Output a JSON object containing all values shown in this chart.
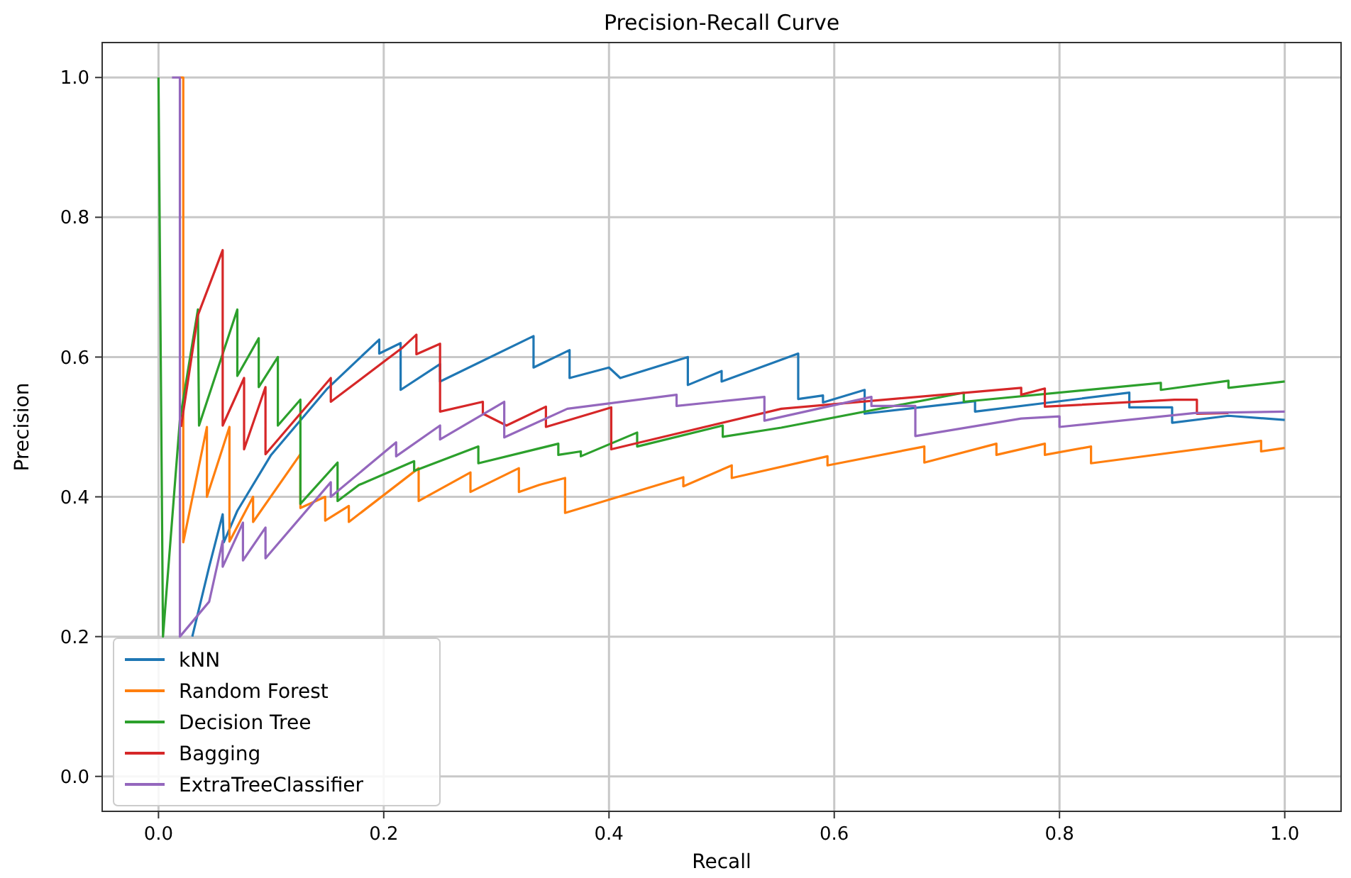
{
  "chart_data": {
    "type": "line",
    "title": "Precision-Recall Curve",
    "xlabel": "Recall",
    "ylabel": "Precision",
    "xlim": [
      -0.05,
      1.05
    ],
    "ylim": [
      -0.05,
      1.05
    ],
    "xticks": [
      {
        "value": 0,
        "label": "0.0"
      },
      {
        "value": 0.2,
        "label": "0.2"
      },
      {
        "value": 0.4,
        "label": "0.4"
      },
      {
        "value": 0.6,
        "label": "0.6"
      },
      {
        "value": 0.8,
        "label": "0.8"
      },
      {
        "value": 1,
        "label": "1.0"
      }
    ],
    "yticks": [
      {
        "value": 0,
        "label": "0.0"
      },
      {
        "value": 0.2,
        "label": "0.2"
      },
      {
        "value": 0.4,
        "label": "0.4"
      },
      {
        "value": 0.6,
        "label": "0.6"
      },
      {
        "value": 0.8,
        "label": "0.8"
      },
      {
        "value": 1,
        "label": "1.0"
      }
    ],
    "grid": true,
    "legend": "bottom left",
    "marker": "none",
    "line_style": "solid",
    "series": [
      {
        "name": "kNN",
        "color": "#1f77b4",
        "x": [
          0.03,
          0.045,
          0.057,
          0.058,
          0.07,
          0.1,
          0.15,
          0.196,
          0.196,
          0.215,
          0.215,
          0.25,
          0.25,
          0.333,
          0.333,
          0.365,
          0.365,
          0.4,
          0.41,
          0.47,
          0.47,
          0.5,
          0.5,
          0.568,
          0.568,
          0.59,
          0.59,
          0.627,
          0.627,
          0.725,
          0.725,
          0.862,
          0.862,
          0.9,
          0.9,
          0.95,
          1.0
        ],
        "values": [
          0.2,
          0.3,
          0.375,
          0.335,
          0.38,
          0.46,
          0.555,
          0.625,
          0.605,
          0.62,
          0.553,
          0.59,
          0.565,
          0.63,
          0.585,
          0.61,
          0.57,
          0.585,
          0.57,
          0.6,
          0.56,
          0.58,
          0.565,
          0.605,
          0.54,
          0.545,
          0.535,
          0.553,
          0.519,
          0.537,
          0.522,
          0.549,
          0.528,
          0.528,
          0.506,
          0.516,
          0.51
        ]
      },
      {
        "name": "Random Forest",
        "color": "#ff7f0e",
        "x": [
          0.019,
          0.022,
          0.022,
          0.043,
          0.043,
          0.063,
          0.063,
          0.084,
          0.084,
          0.126,
          0.126,
          0.148,
          0.148,
          0.169,
          0.169,
          0.231,
          0.231,
          0.277,
          0.277,
          0.32,
          0.32,
          0.338,
          0.361,
          0.361,
          0.466,
          0.466,
          0.509,
          0.509,
          0.594,
          0.594,
          0.68,
          0.68,
          0.744,
          0.744,
          0.787,
          0.787,
          0.828,
          0.828,
          0.979,
          0.979,
          1.0
        ],
        "values": [
          1,
          1,
          0.335,
          0.5,
          0.4,
          0.5,
          0.336,
          0.4,
          0.364,
          0.461,
          0.384,
          0.4,
          0.366,
          0.387,
          0.364,
          0.441,
          0.394,
          0.435,
          0.407,
          0.441,
          0.407,
          0.417,
          0.427,
          0.377,
          0.428,
          0.415,
          0.445,
          0.427,
          0.458,
          0.445,
          0.472,
          0.449,
          0.476,
          0.46,
          0.476,
          0.46,
          0.472,
          0.448,
          0.48,
          0.465,
          0.47
        ]
      },
      {
        "name": "Decision Tree",
        "color": "#2ca02c",
        "x": [
          0,
          0.004,
          0.019,
          0.035,
          0.036,
          0.07,
          0.07,
          0.089,
          0.089,
          0.106,
          0.106,
          0.126,
          0.126,
          0.159,
          0.159,
          0.178,
          0.227,
          0.227,
          0.284,
          0.284,
          0.355,
          0.355,
          0.375,
          0.375,
          0.425,
          0.425,
          0.501,
          0.501,
          0.553,
          0.715,
          0.715,
          0.89,
          0.89,
          0.95,
          0.95,
          1.0
        ],
        "values": [
          1,
          0.2,
          0.51,
          0.668,
          0.502,
          0.668,
          0.573,
          0.627,
          0.557,
          0.6,
          0.502,
          0.539,
          0.39,
          0.449,
          0.394,
          0.417,
          0.451,
          0.437,
          0.472,
          0.448,
          0.476,
          0.46,
          0.465,
          0.458,
          0.492,
          0.472,
          0.502,
          0.486,
          0.499,
          0.549,
          0.536,
          0.563,
          0.553,
          0.566,
          0.556,
          0.565
        ]
      },
      {
        "name": "Bagging",
        "color": "#d62728",
        "x": [
          0.02,
          0.035,
          0.057,
          0.057,
          0.076,
          0.076,
          0.095,
          0.095,
          0.153,
          0.153,
          0.217,
          0.229,
          0.229,
          0.25,
          0.25,
          0.288,
          0.288,
          0.309,
          0.344,
          0.344,
          0.402,
          0.402,
          0.553,
          0.766,
          0.766,
          0.787,
          0.787,
          0.902,
          0.922,
          0.922,
          0.95
        ],
        "values": [
          0.5,
          0.66,
          0.753,
          0.502,
          0.57,
          0.468,
          0.557,
          0.461,
          0.57,
          0.536,
          0.614,
          0.632,
          0.604,
          0.619,
          0.522,
          0.536,
          0.519,
          0.502,
          0.529,
          0.5,
          0.528,
          0.468,
          0.526,
          0.556,
          0.546,
          0.555,
          0.529,
          0.539,
          0.539,
          0.519,
          0.52
        ]
      },
      {
        "name": "ExtraTreeClassifier",
        "color": "#9467bd",
        "x": [
          0.012,
          0.019,
          0.019,
          0.045,
          0.057,
          0.057,
          0.075,
          0.075,
          0.095,
          0.095,
          0.153,
          0.153,
          0.211,
          0.211,
          0.25,
          0.25,
          0.307,
          0.307,
          0.363,
          0.46,
          0.46,
          0.538,
          0.538,
          0.633,
          0.633,
          0.672,
          0.672,
          0.766,
          0.8,
          0.8,
          0.92,
          1.0
        ],
        "values": [
          1,
          1,
          0.2,
          0.25,
          0.337,
          0.3,
          0.363,
          0.309,
          0.356,
          0.312,
          0.421,
          0.4,
          0.478,
          0.458,
          0.502,
          0.482,
          0.536,
          0.485,
          0.526,
          0.546,
          0.53,
          0.543,
          0.509,
          0.543,
          0.53,
          0.53,
          0.487,
          0.512,
          0.515,
          0.5,
          0.52,
          0.522
        ]
      }
    ]
  }
}
